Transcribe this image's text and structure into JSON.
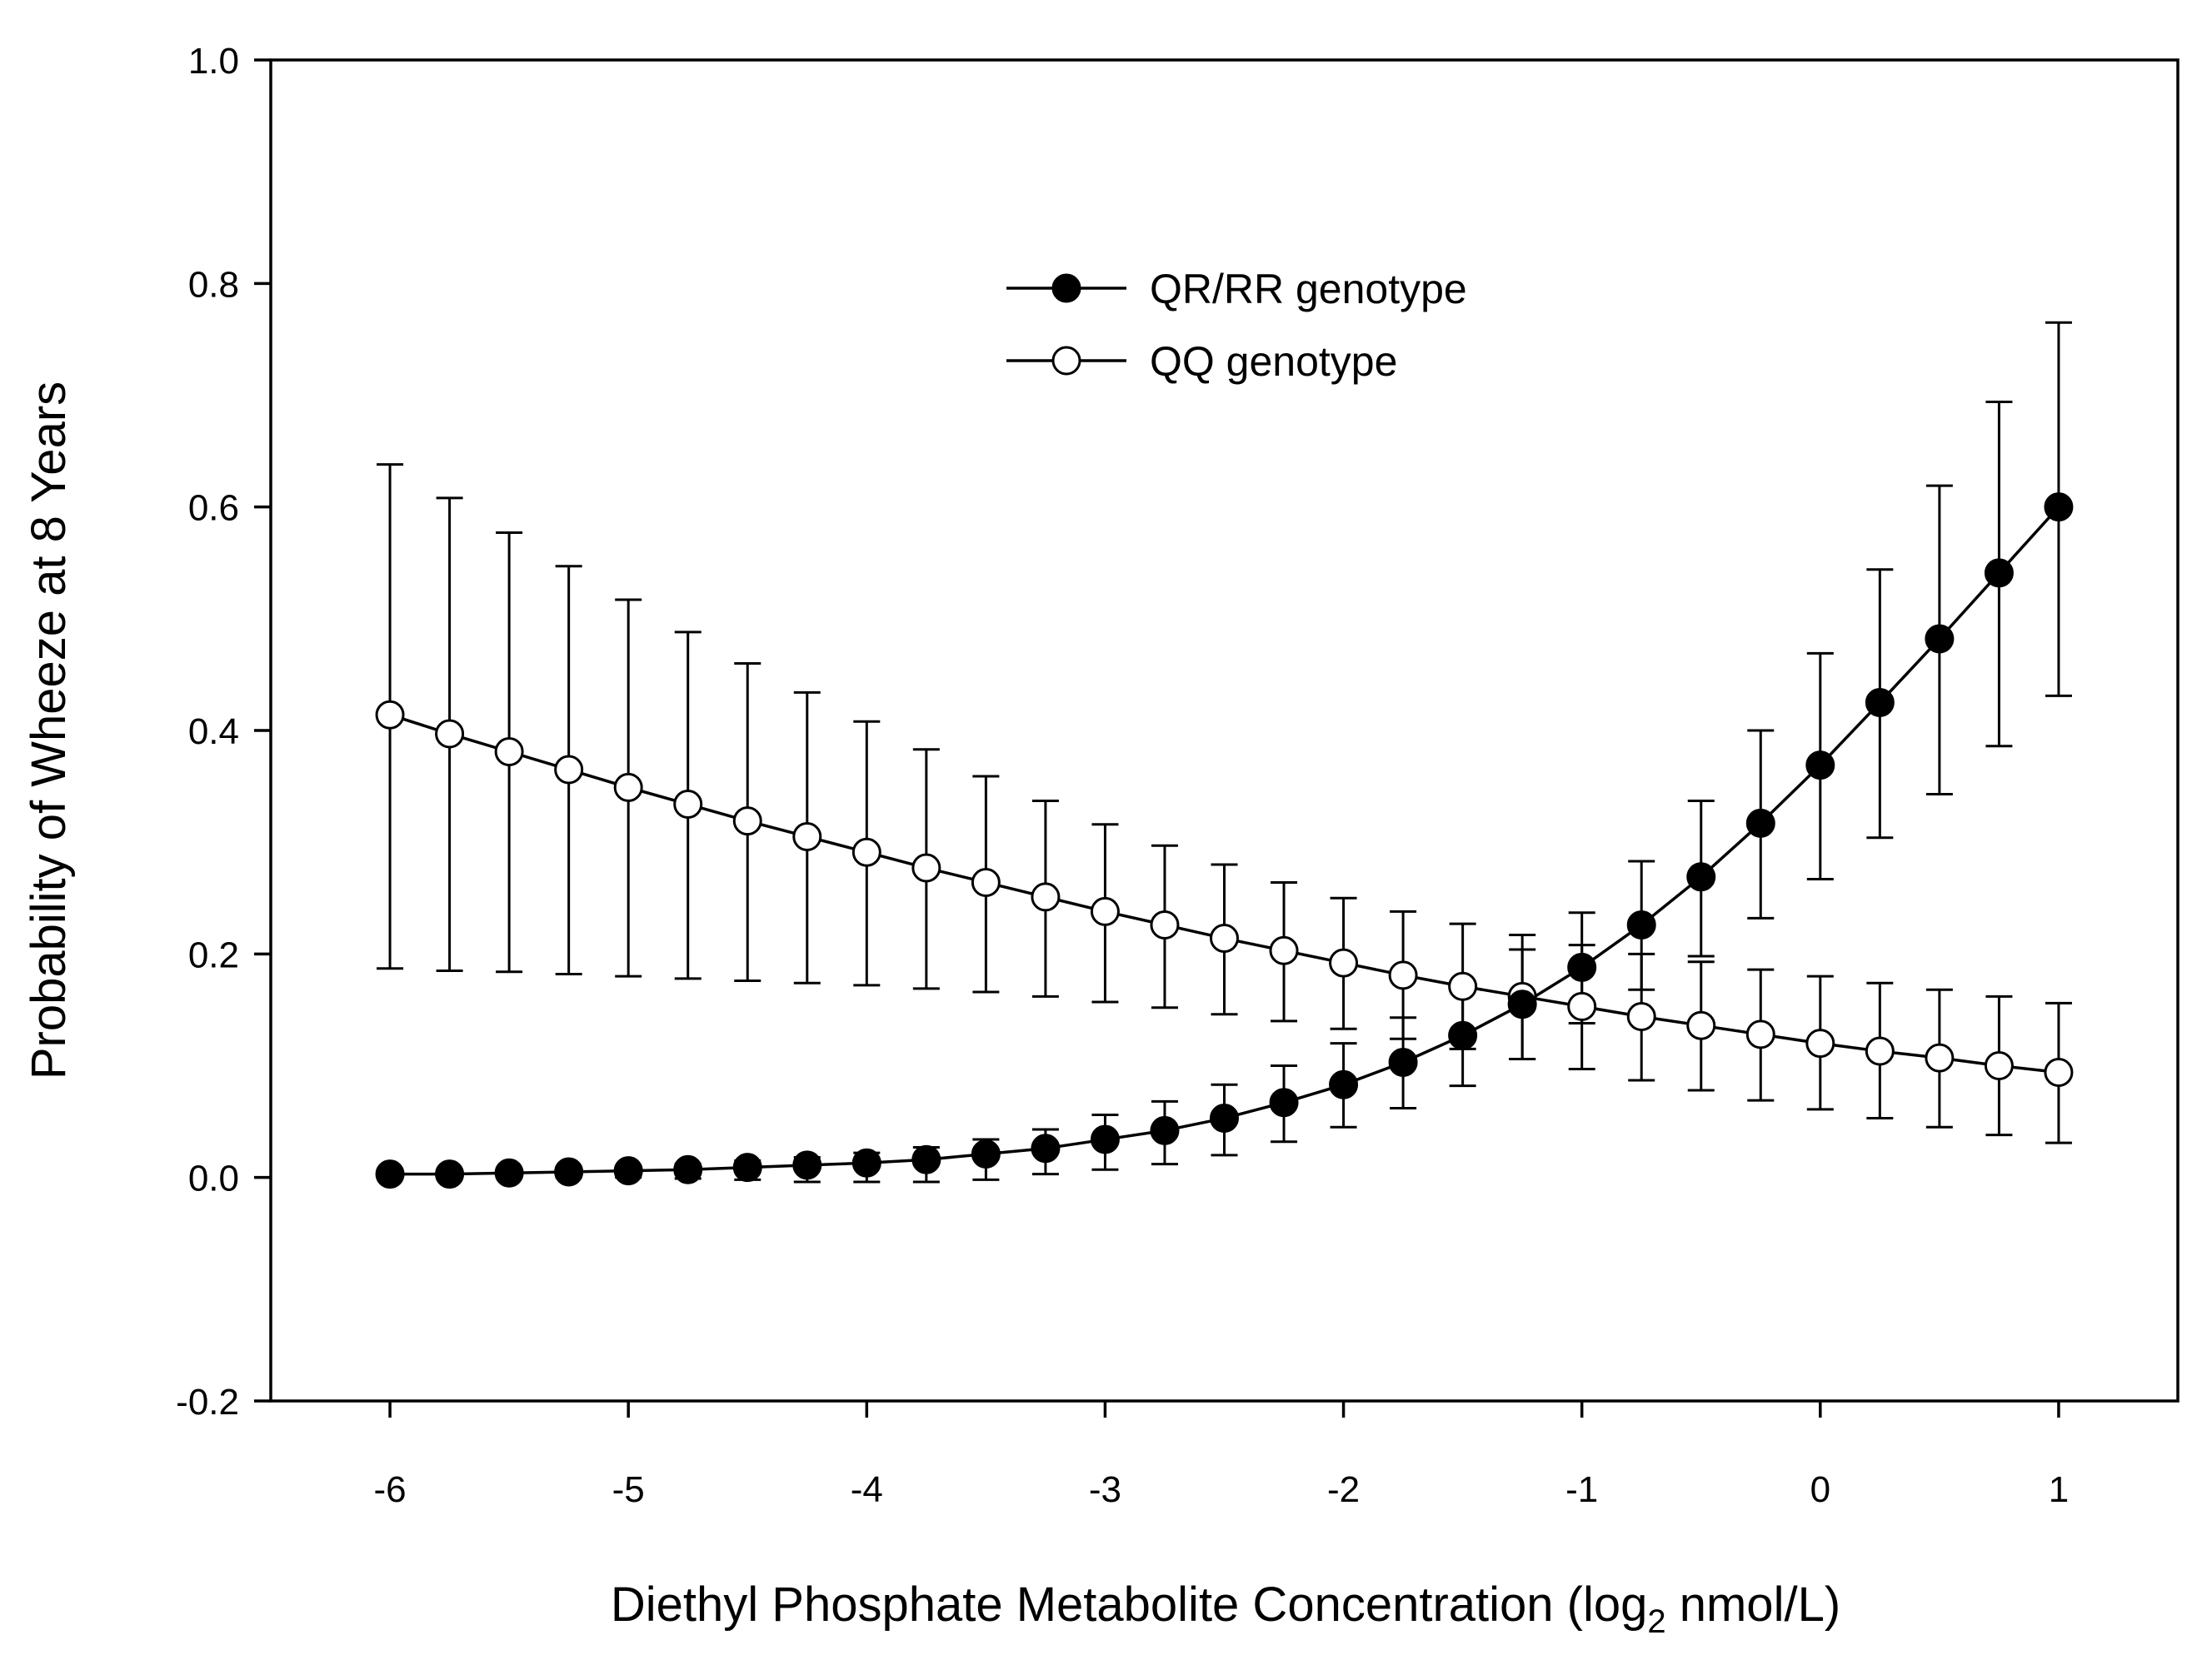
{
  "chart_data": {
    "type": "line",
    "title": "",
    "xlabel_main": "Diethyl Phosphate Metabolite Concentration (log",
    "xlabel_sub": "2",
    "xlabel_end": " nmol/L)",
    "ylabel": "Probability of Wheeze at 8 Years",
    "xlim": [
      -6.5,
      1.5
    ],
    "ylim": [
      -0.2,
      1.0
    ],
    "xticks": [
      -6,
      -5,
      -4,
      -3,
      -2,
      -1,
      0,
      1
    ],
    "xtick_labels": [
      "-6",
      "-5",
      "-4",
      "-3",
      "-2",
      "-1",
      "0",
      "1"
    ],
    "yticks": [
      -0.2,
      0.0,
      0.2,
      0.4,
      0.6,
      0.8,
      1.0
    ],
    "ytick_labels": [
      "-0.2",
      "0.0",
      "0.2",
      "0.4",
      "0.6",
      "0.8",
      "1.0"
    ],
    "grid": false,
    "legend_position": "upper-center",
    "x": [
      -6,
      -5.75,
      -5.5,
      -5.25,
      -5,
      -4.75,
      -4.5,
      -4.25,
      -4,
      -3.75,
      -3.5,
      -3.25,
      -3,
      -2.75,
      -2.5,
      -2.25,
      -2,
      -1.75,
      -1.5,
      -1.25,
      -1,
      -0.75,
      -0.5,
      -0.25,
      0,
      0.25,
      0.5,
      0.75,
      1
    ],
    "series": [
      {
        "name": "QR/RR genotype",
        "marker": "filled-circle",
        "color": "#000000",
        "values": [
          0.003,
          0.003,
          0.004,
          0.005,
          0.006,
          0.007,
          0.009,
          0.011,
          0.013,
          0.016,
          0.021,
          0.026,
          0.034,
          0.042,
          0.053,
          0.067,
          0.083,
          0.103,
          0.127,
          0.155,
          0.188,
          0.226,
          0.269,
          0.317,
          0.369,
          0.425,
          0.482,
          0.541,
          0.6
        ],
        "upper": [
          0.005,
          0.006,
          0.007,
          0.008,
          0.01,
          0.012,
          0.015,
          0.018,
          0.022,
          0.027,
          0.034,
          0.043,
          0.056,
          0.068,
          0.083,
          0.1,
          0.12,
          0.143,
          0.17,
          0.204,
          0.237,
          0.283,
          0.337,
          0.4,
          0.469,
          0.544,
          0.619,
          0.694,
          0.765
        ],
        "lower": [
          0.0,
          0.0,
          0.0,
          0.0,
          0.0,
          -0.001,
          -0.002,
          -0.004,
          -0.004,
          -0.004,
          -0.002,
          0.003,
          0.007,
          0.012,
          0.02,
          0.032,
          0.045,
          0.062,
          0.082,
          0.106,
          0.138,
          0.168,
          0.198,
          0.232,
          0.267,
          0.304,
          0.343,
          0.386,
          0.431
        ]
      },
      {
        "name": "QQ genotype",
        "marker": "open-circle",
        "color": "#000000",
        "values": [
          0.414,
          0.397,
          0.381,
          0.365,
          0.349,
          0.334,
          0.319,
          0.305,
          0.291,
          0.277,
          0.264,
          0.251,
          0.238,
          0.226,
          0.214,
          0.203,
          0.192,
          0.181,
          0.171,
          0.162,
          0.153,
          0.144,
          0.136,
          0.128,
          0.12,
          0.113,
          0.107,
          0.1,
          0.094
        ],
        "upper": [
          0.638,
          0.608,
          0.577,
          0.547,
          0.517,
          0.488,
          0.46,
          0.434,
          0.408,
          0.383,
          0.359,
          0.337,
          0.316,
          0.297,
          0.28,
          0.264,
          0.25,
          0.238,
          0.227,
          0.217,
          0.208,
          0.2,
          0.193,
          0.186,
          0.18,
          0.174,
          0.168,
          0.162,
          0.156
        ],
        "lower": [
          0.187,
          0.185,
          0.184,
          0.182,
          0.18,
          0.178,
          0.176,
          0.174,
          0.172,
          0.169,
          0.166,
          0.162,
          0.157,
          0.152,
          0.146,
          0.14,
          0.133,
          0.124,
          0.115,
          0.106,
          0.097,
          0.087,
          0.078,
          0.069,
          0.061,
          0.053,
          0.045,
          0.038,
          0.031
        ]
      }
    ]
  }
}
